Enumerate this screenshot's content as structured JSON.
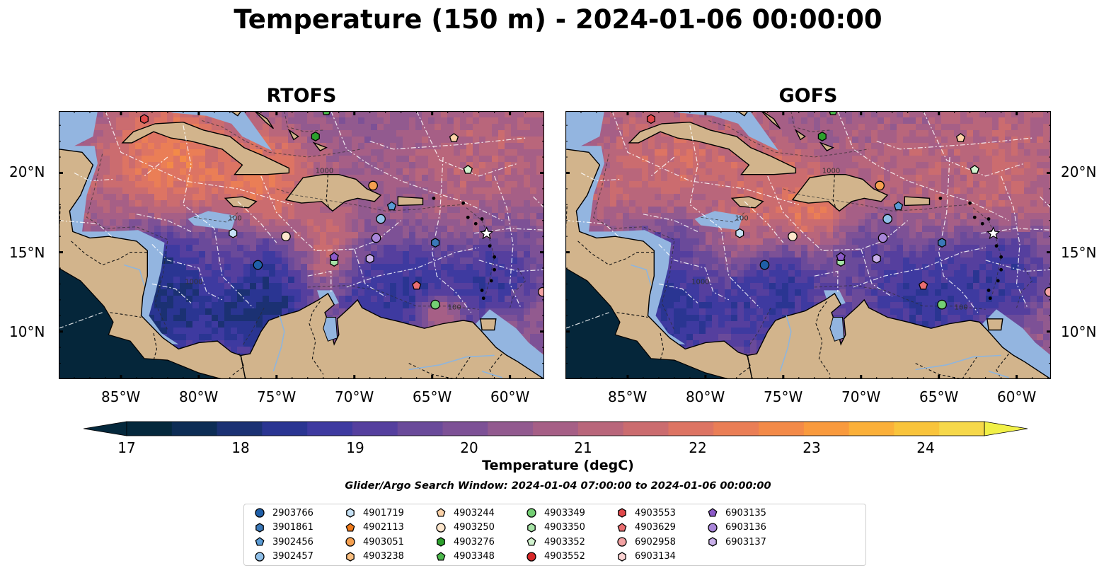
{
  "title": "Temperature (150 m) - 2024-01-06 00:00:00",
  "panels": [
    {
      "title": "RTOFS"
    },
    {
      "title": "GOFS"
    }
  ],
  "axes": {
    "x_ticks": [
      "85°W",
      "80°W",
      "75°W",
      "70°W",
      "65°W",
      "60°W"
    ],
    "y_ticks": [
      "20°N",
      "15°N",
      "10°N"
    ]
  },
  "colorbar": {
    "label": "Temperature (degC)",
    "ticks": [
      "17",
      "18",
      "19",
      "20",
      "21",
      "22",
      "23",
      "24"
    ],
    "colors": [
      "#04283c",
      "#0d2d55",
      "#1b3173",
      "#2a3592",
      "#3e3aa0",
      "#553f9e",
      "#6a4a9a",
      "#7d5196",
      "#925a8f",
      "#a65f86",
      "#b9667b",
      "#cb6c6f",
      "#dd7463",
      "#ea7e56",
      "#f38a48",
      "#f99a3d",
      "#fbb039",
      "#f9c43b",
      "#f6d84a"
    ],
    "extend_low": "#04283c",
    "extend_high": "#f1f047"
  },
  "contour_labels": [
    "100",
    "1000"
  ],
  "search_window": "Glider/Argo Search Window: 2024-01-04 07:00:00 to 2024-01-06 00:00:00",
  "legend": [
    {
      "id": "2903766",
      "color": "#1f5fa8",
      "marker": "circle"
    },
    {
      "id": "3901861",
      "color": "#3a78b8",
      "marker": "hexagon"
    },
    {
      "id": "3902456",
      "color": "#5a9bd5",
      "marker": "pentagon"
    },
    {
      "id": "3902457",
      "color": "#8fbfe8",
      "marker": "circle"
    },
    {
      "id": "4901719",
      "color": "#c6e1f5",
      "marker": "hexagon"
    },
    {
      "id": "4902113",
      "color": "#f07a1a",
      "marker": "pentagon"
    },
    {
      "id": "4903051",
      "color": "#f5a050",
      "marker": "circle"
    },
    {
      "id": "4903238",
      "color": "#fbbf80",
      "marker": "hexagon"
    },
    {
      "id": "4903244",
      "color": "#fcd2a8",
      "marker": "pentagon"
    },
    {
      "id": "4903250",
      "color": "#fde6cc",
      "marker": "circle"
    },
    {
      "id": "4903276",
      "color": "#2ca02c",
      "marker": "hexagon"
    },
    {
      "id": "4903348",
      "color": "#4cb84c",
      "marker": "pentagon"
    },
    {
      "id": "4903349",
      "color": "#74cf74",
      "marker": "circle"
    },
    {
      "id": "4903350",
      "color": "#a6e3a6",
      "marker": "hexagon"
    },
    {
      "id": "4903352",
      "color": "#d2f3cf",
      "marker": "pentagon"
    },
    {
      "id": "4903552",
      "color": "#d62728",
      "marker": "circle"
    },
    {
      "id": "4903553",
      "color": "#e0484a",
      "marker": "hexagon"
    },
    {
      "id": "4903629",
      "color": "#ea6e70",
      "marker": "pentagon"
    },
    {
      "id": "6902958",
      "color": "#f3a2a3",
      "marker": "circle"
    },
    {
      "id": "6903134",
      "color": "#fbd3d3",
      "marker": "hexagon"
    },
    {
      "id": "6903135",
      "color": "#8c5ac8",
      "marker": "pentagon"
    },
    {
      "id": "6903136",
      "color": "#a885d8",
      "marker": "circle"
    },
    {
      "id": "6903137",
      "color": "#c9b0ea",
      "marker": "hexagon"
    }
  ],
  "floats": [
    {
      "id": "2903766",
      "lon": -76.2,
      "lat": 14.2
    },
    {
      "id": "3901861",
      "lon": -64.8,
      "lat": 15.6
    },
    {
      "id": "3902456",
      "lon": -67.6,
      "lat": 17.9
    },
    {
      "id": "3902457",
      "lon": -68.3,
      "lat": 17.1
    },
    {
      "id": "4901719",
      "lon": -77.8,
      "lat": 16.2
    },
    {
      "id": "4903051",
      "lon": -68.8,
      "lat": 19.2
    },
    {
      "id": "4903244",
      "lon": -63.6,
      "lat": 22.2
    },
    {
      "id": "4903250",
      "lon": -74.4,
      "lat": 16.0
    },
    {
      "id": "4903276",
      "lon": -72.5,
      "lat": 22.3
    },
    {
      "id": "4903348",
      "lon": -71.8,
      "lat": 23.9
    },
    {
      "id": "4903349",
      "lon": -64.8,
      "lat": 11.7
    },
    {
      "id": "4903350",
      "lon": -71.3,
      "lat": 14.4
    },
    {
      "id": "4903352",
      "lon": -62.7,
      "lat": 20.2
    },
    {
      "id": "4903553",
      "lon": -83.5,
      "lat": 23.4
    },
    {
      "id": "4903629",
      "lon": -66.0,
      "lat": 12.9
    },
    {
      "id": "6902958",
      "lon": -57.9,
      "lat": 12.5
    },
    {
      "id": "6903135",
      "lon": -71.3,
      "lat": 14.7
    },
    {
      "id": "6903136",
      "lon": -68.6,
      "lat": 15.9
    },
    {
      "id": "6903137",
      "lon": -69.0,
      "lat": 14.6
    }
  ]
}
